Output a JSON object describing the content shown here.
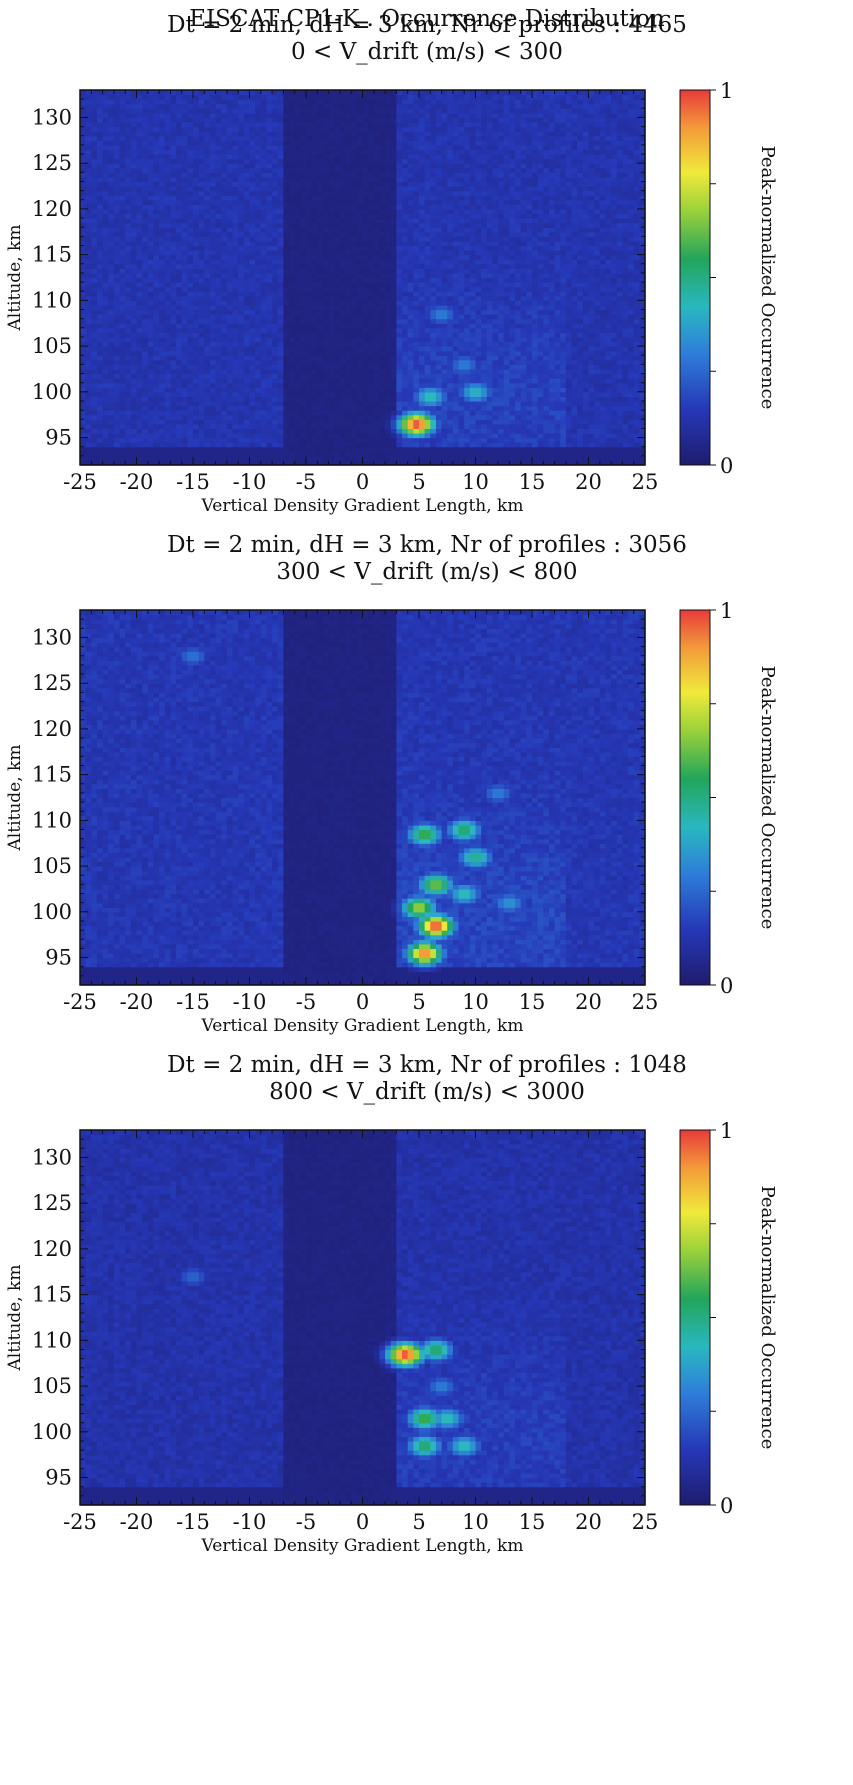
{
  "figure": {
    "main_title": "EISCAT  CP1-K . Occurrence Distribution"
  },
  "chart_data": [
    {
      "type": "heatmap",
      "subtitle_lines": [
        "Dt = 2 min, dH = 3 km, Nr of profiles :  4465",
        "0     < V_drift (m/s) <  300"
      ],
      "xlabel": "Vertical Density Gradient Length, km",
      "ylabel": "Altitude, km",
      "xlim": [
        -25,
        25
      ],
      "ylim": [
        92,
        133
      ],
      "x_ticks": [
        -25,
        -20,
        -15,
        -10,
        -5,
        0,
        5,
        10,
        15,
        20,
        25
      ],
      "y_ticks": [
        95,
        100,
        105,
        110,
        115,
        120,
        125,
        130
      ],
      "colorbar": {
        "label": "Peak-normalized Occurrence",
        "range": [
          0,
          1
        ],
        "tick_labels": [
          "0",
          "1"
        ]
      },
      "background_level": 0.13,
      "dark_band": {
        "x_range": [
          -7,
          3
        ],
        "level": 0.03
      },
      "hotspots": [
        {
          "x": 4.8,
          "y": 96.5,
          "value": 1.0
        },
        {
          "x": 6.0,
          "y": 99.5,
          "value": 0.45
        },
        {
          "x": 10.0,
          "y": 100.0,
          "value": 0.42
        },
        {
          "x": 9.0,
          "y": 103.0,
          "value": 0.3
        },
        {
          "x": 7.0,
          "y": 108.5,
          "value": 0.3
        }
      ]
    },
    {
      "type": "heatmap",
      "subtitle_lines": [
        "Dt = 2 min, dH = 3 km, Nr of profiles :  3056",
        "300 < V_drift (m/s) <  800"
      ],
      "xlabel": "Vertical Density Gradient Length, km",
      "ylabel": "Altitude, km",
      "xlim": [
        -25,
        25
      ],
      "ylim": [
        92,
        133
      ],
      "x_ticks": [
        -25,
        -20,
        -15,
        -10,
        -5,
        0,
        5,
        10,
        15,
        20,
        25
      ],
      "y_ticks": [
        95,
        100,
        105,
        110,
        115,
        120,
        125,
        130
      ],
      "colorbar": {
        "label": "Peak-normalized Occurrence",
        "range": [
          0,
          1
        ],
        "tick_labels": [
          "0",
          "1"
        ]
      },
      "background_level": 0.14,
      "dark_band": {
        "x_range": [
          -7,
          3
        ],
        "level": 0.03
      },
      "hotspots": [
        {
          "x": 5.5,
          "y": 95.5,
          "value": 0.95
        },
        {
          "x": 6.5,
          "y": 98.5,
          "value": 1.0
        },
        {
          "x": 5.0,
          "y": 100.5,
          "value": 0.7
        },
        {
          "x": 6.5,
          "y": 103.0,
          "value": 0.65
        },
        {
          "x": 9.0,
          "y": 102.0,
          "value": 0.45
        },
        {
          "x": 10.0,
          "y": 106.0,
          "value": 0.5
        },
        {
          "x": 5.5,
          "y": 108.5,
          "value": 0.6
        },
        {
          "x": 9.0,
          "y": 109.0,
          "value": 0.55
        },
        {
          "x": 13.0,
          "y": 101.0,
          "value": 0.35
        },
        {
          "x": 12.0,
          "y": 113.0,
          "value": 0.3
        },
        {
          "x": -15.0,
          "y": 128.0,
          "value": 0.28
        }
      ]
    },
    {
      "type": "heatmap",
      "subtitle_lines": [
        "Dt = 2 min, dH = 3 km, Nr of profiles :  1048",
        "800 < V_drift (m/s) <  3000"
      ],
      "xlabel": "Vertical Density Gradient Length, km",
      "ylabel": "Altitude, km",
      "xlim": [
        -25,
        25
      ],
      "ylim": [
        92,
        133
      ],
      "x_ticks": [
        -25,
        -20,
        -15,
        -10,
        -5,
        0,
        5,
        10,
        15,
        20,
        25
      ],
      "y_ticks": [
        95,
        100,
        105,
        110,
        115,
        120,
        125,
        130
      ],
      "colorbar": {
        "label": "Peak-normalized Occurrence",
        "range": [
          0,
          1
        ],
        "tick_labels": [
          "0",
          "1"
        ]
      },
      "background_level": 0.12,
      "dark_band": {
        "x_range": [
          -7,
          3
        ],
        "level": 0.03
      },
      "hotspots": [
        {
          "x": 3.8,
          "y": 108.5,
          "value": 1.0
        },
        {
          "x": 6.5,
          "y": 109.0,
          "value": 0.55
        },
        {
          "x": 5.5,
          "y": 101.5,
          "value": 0.6
        },
        {
          "x": 7.5,
          "y": 101.5,
          "value": 0.45
        },
        {
          "x": 5.5,
          "y": 98.5,
          "value": 0.55
        },
        {
          "x": 9.0,
          "y": 98.5,
          "value": 0.45
        },
        {
          "x": 7.0,
          "y": 105.0,
          "value": 0.3
        },
        {
          "x": -15.0,
          "y": 117.0,
          "value": 0.25
        }
      ]
    }
  ]
}
